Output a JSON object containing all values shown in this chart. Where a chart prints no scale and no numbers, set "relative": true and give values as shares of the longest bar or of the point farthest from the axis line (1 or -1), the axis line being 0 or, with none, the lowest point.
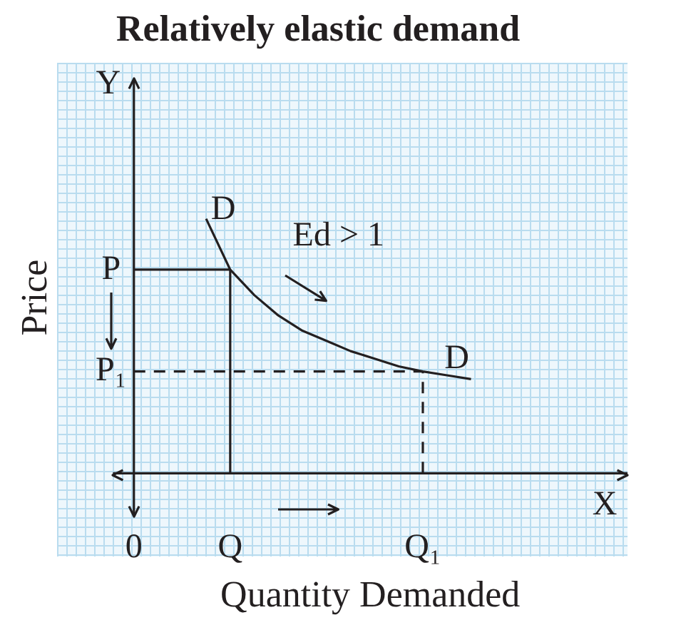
{
  "chart_data": {
    "type": "line",
    "title": "Relatively elastic demand",
    "xlabel": "Quantity Demanded",
    "ylabel": "Price",
    "relative": true,
    "legend": false,
    "marker": "none",
    "categories": [
      "0",
      null,
      null,
      null,
      "Q",
      null,
      null,
      null,
      null,
      null,
      null,
      null,
      "Q₁",
      null,
      null
    ],
    "series": [
      {
        "color": "#231f20",
        "line_style": "solid",
        "values": [
          null,
          null,
          null,
          1,
          0.8,
          0.7,
          0.62,
          0.56,
          0.52,
          0.48,
          0.45,
          0.42,
          0.4,
          0.385,
          0.37
        ]
      },
      {
        "color": "#231f20",
        "line_style": "solid",
        "values": [
          0.8,
          0.8,
          0.8,
          0.8,
          0.8,
          null,
          null,
          null,
          null,
          null,
          null,
          null,
          null,
          null,
          null
        ]
      },
      {
        "color": "#231f20",
        "line_style": "dashed",
        "values": [
          0.4,
          0.4,
          0.4,
          0.4,
          0.4,
          0.4,
          0.4,
          0.4,
          0.4,
          0.4,
          0.4,
          0.4,
          0.4,
          null,
          null
        ]
      }
    ],
    "ref_lines": [
      {
        "axis": "x",
        "value": "Q",
        "color": "#231f20",
        "line_style": "solid"
      },
      {
        "axis": "x",
        "value": "Q₁",
        "color": "#231f20",
        "line_style": "dashed"
      }
    ],
    "annotations": [
      "D",
      "D",
      "Ed > 1",
      "Y",
      "X",
      "P",
      "P₁"
    ]
  }
}
